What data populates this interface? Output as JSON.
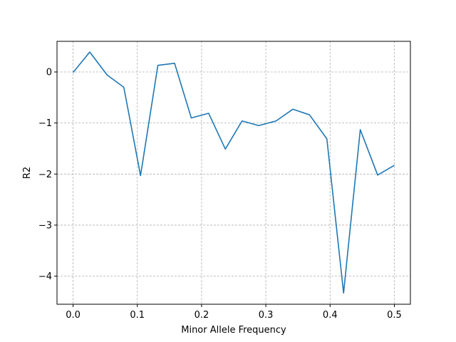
{
  "chart_data": {
    "type": "line",
    "title": "",
    "xlabel": "Minor Allele Frequency",
    "ylabel": "R2",
    "xlim": [
      -0.025,
      0.525
    ],
    "ylim": [
      -4.55,
      0.6
    ],
    "grid": true,
    "grid_style": "dashed",
    "series_color": "#1f77b4",
    "x_ticks": [
      {
        "value": 0.0,
        "label": "0.0"
      },
      {
        "value": 0.1,
        "label": "0.1"
      },
      {
        "value": 0.2,
        "label": "0.2"
      },
      {
        "value": 0.3,
        "label": "0.3"
      },
      {
        "value": 0.4,
        "label": "0.4"
      },
      {
        "value": 0.5,
        "label": "0.5"
      }
    ],
    "y_ticks": [
      {
        "value": 0,
        "label": "0"
      },
      {
        "value": -1,
        "label": "−1"
      },
      {
        "value": -2,
        "label": "−2"
      },
      {
        "value": -3,
        "label": "−3"
      },
      {
        "value": -4,
        "label": "−4"
      }
    ],
    "series": [
      {
        "x": [
          0.0,
          0.026,
          0.053,
          0.079,
          0.105,
          0.132,
          0.158,
          0.184,
          0.211,
          0.237,
          0.263,
          0.289,
          0.316,
          0.342,
          0.368,
          0.395,
          0.421,
          0.447,
          0.474,
          0.5
        ],
        "y": [
          -0.01,
          0.39,
          -0.06,
          -0.3,
          -2.03,
          0.13,
          0.17,
          -0.9,
          -0.81,
          -1.51,
          -0.96,
          -1.05,
          -0.96,
          -0.73,
          -0.84,
          -1.31,
          -4.33,
          -1.13,
          -2.02,
          -1.83
        ]
      }
    ]
  }
}
